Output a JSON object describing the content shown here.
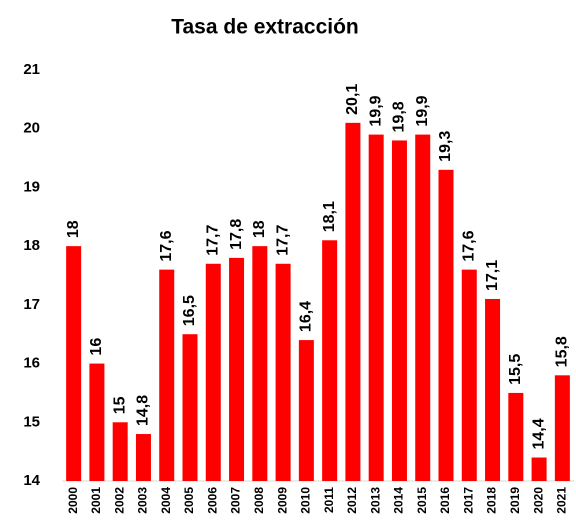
{
  "chart_data": {
    "type": "bar",
    "title": "Tasa de extracción",
    "categories": [
      "2000",
      "2001",
      "2002",
      "2003",
      "2004",
      "2005",
      "2006",
      "2007",
      "2008",
      "2009",
      "2010",
      "2011",
      "2012",
      "2013",
      "2014",
      "2015",
      "2016",
      "2017",
      "2018",
      "2019",
      "2020",
      "2021"
    ],
    "values": [
      18,
      16,
      15,
      14.8,
      17.6,
      16.5,
      17.7,
      17.8,
      18,
      17.7,
      16.4,
      18.1,
      20.1,
      19.9,
      19.8,
      19.9,
      19.3,
      17.6,
      17.1,
      15.5,
      14.4,
      15.8
    ],
    "value_labels": [
      "18",
      "16",
      "15",
      "14,8",
      "17,6",
      "16,5",
      "17,7",
      "17,8",
      "18",
      "17,7",
      "16,4",
      "18,1",
      "20,1",
      "19,9",
      "19,8",
      "19,9",
      "19,3",
      "17,6",
      "17,1",
      "15,5",
      "14,4",
      "15,8"
    ],
    "color": "#ff0000",
    "ylim": [
      14,
      21
    ],
    "yticks": [
      14,
      15,
      16,
      17,
      18,
      19,
      20,
      21
    ],
    "grid": false
  }
}
